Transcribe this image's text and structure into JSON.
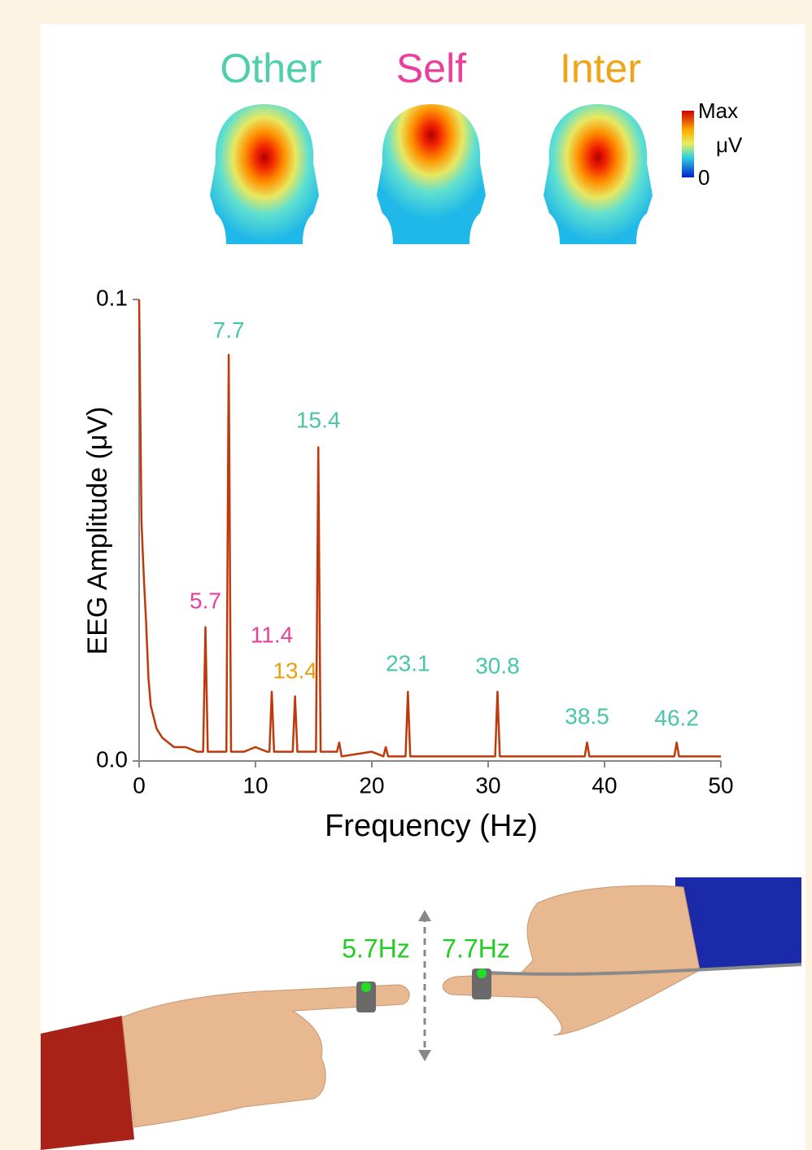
{
  "scalp_maps": [
    {
      "label": "Other",
      "color": "#4fcfae"
    },
    {
      "label": "Self",
      "color": "#e8409c"
    },
    {
      "label": "Inter",
      "color": "#eea51a"
    }
  ],
  "colorbar": {
    "max": "Max",
    "unit": "μV",
    "min": "0"
  },
  "chart_data": {
    "type": "line",
    "x_label": "Frequency (Hz)",
    "y_label": "EEG Amplitude (μV)",
    "x": [
      0,
      0.2,
      0.4,
      0.6,
      0.8,
      1,
      1.5,
      2,
      3,
      4,
      5,
      5.5,
      5.7,
      5.9,
      7,
      7.5,
      7.7,
      7.9,
      9,
      10,
      11,
      11.2,
      11.4,
      11.6,
      12,
      13.2,
      13.4,
      13.6,
      15.2,
      15.4,
      15.6,
      17,
      17.2,
      17.4,
      20,
      21,
      21.2,
      21.4,
      22.9,
      23.1,
      23.3,
      27,
      30.6,
      30.8,
      31,
      35,
      38.3,
      38.5,
      38.7,
      42,
      46,
      46.2,
      46.4,
      50
    ],
    "values": [
      0.1,
      0.052,
      0.04,
      0.03,
      0.018,
      0.012,
      0.007,
      0.005,
      0.003,
      0.003,
      0.002,
      0.002,
      0.029,
      0.002,
      0.002,
      0.002,
      0.088,
      0.002,
      0.002,
      0.003,
      0.002,
      0.002,
      0.015,
      0.002,
      0.002,
      0.002,
      0.014,
      0.002,
      0.002,
      0.068,
      0.002,
      0.002,
      0.004,
      0.001,
      0.002,
      0.001,
      0.003,
      0.001,
      0.001,
      0.015,
      0.001,
      0.001,
      0.001,
      0.015,
      0.001,
      0.001,
      0.001,
      0.004,
      0.001,
      0.001,
      0.001,
      0.004,
      0.001,
      0.001
    ],
    "color": "#c0390b",
    "xlim": [
      0,
      50
    ],
    "ylim": [
      0,
      0.1
    ],
    "xticks": [
      0,
      10,
      20,
      30,
      40,
      50
    ],
    "yticks": [
      {
        "value": 0,
        "label": "0.0"
      },
      0.1
    ],
    "annotations": [
      {
        "x": 7.7,
        "y": 0.093,
        "color": "#49c6a8"
      },
      {
        "x": 15.4,
        "y": 0.0735,
        "color": "#49c6a8"
      },
      {
        "x": 5.7,
        "y": 0.0344,
        "color": "#e8409c"
      },
      {
        "x": 11.4,
        "y": 0.027,
        "color": "#e8409c"
      },
      {
        "x": 13.4,
        "y": 0.0192,
        "color": "#e8a010"
      },
      {
        "x": 23.1,
        "y": 0.0208,
        "color": "#49c6a8"
      },
      {
        "x": 30.8,
        "y": 0.0203,
        "color": "#49c6a8"
      },
      {
        "x": 38.5,
        "y": 0.0093,
        "color": "#49c6a8"
      },
      {
        "x": 46.2,
        "y": 0.009,
        "color": "#49c6a8"
      }
    ]
  },
  "illustration": {
    "left_label": "5.7Hz",
    "right_label": "7.7Hz"
  }
}
